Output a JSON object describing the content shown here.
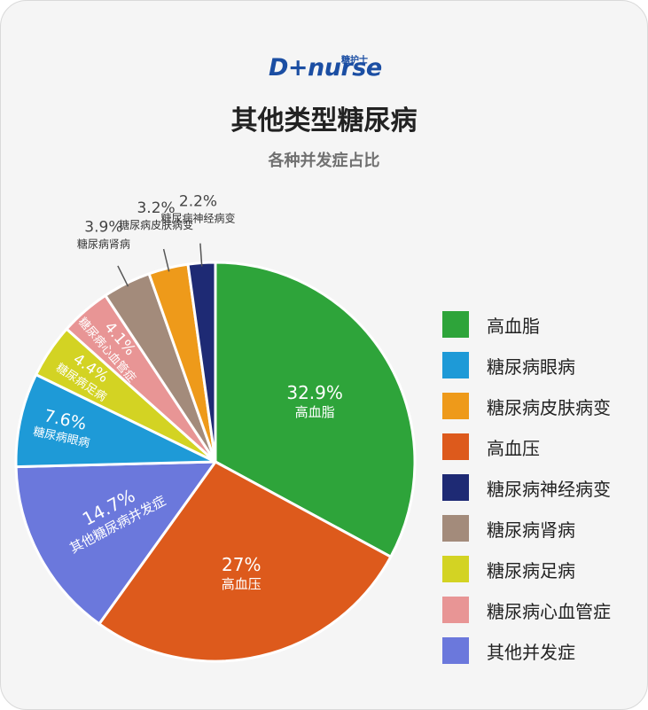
{
  "brand": {
    "logo_text": "D+nurse",
    "logo_chinese": "糖护士"
  },
  "chart_data": {
    "type": "pie",
    "title": "其他类型糖尿病",
    "subtitle": "各种并发症占比",
    "legend_position": "right",
    "slices": [
      {
        "label": "高血脂",
        "value": 32.9,
        "value_text": "32.9%",
        "color": "#2ea43a",
        "label_placement": "inside"
      },
      {
        "label": "高血压",
        "value": 27,
        "value_text": "27%",
        "color": "#dd5a1c",
        "label_placement": "inside"
      },
      {
        "label": "其他糖尿病并发症",
        "value": 14.7,
        "value_text": "14.7%",
        "color": "#6b78dc",
        "label_placement": "inside"
      },
      {
        "label": "糖尿病眼病",
        "value": 7.6,
        "value_text": "7.6%",
        "color": "#1e9ad7",
        "label_placement": "inside"
      },
      {
        "label": "糖尿病足病",
        "value": 4.4,
        "value_text": "4.4%",
        "color": "#d3d323",
        "label_placement": "inside"
      },
      {
        "label": "糖尿病心血管症",
        "value": 4.1,
        "value_text": "4.1%",
        "color": "#e89595",
        "label_placement": "inside"
      },
      {
        "label": "糖尿病肾病",
        "value": 3.9,
        "value_text": "3.9%",
        "color": "#a38b7b",
        "label_placement": "outside"
      },
      {
        "label": "糖尿病皮肤病变",
        "value": 3.2,
        "value_text": "3.2%",
        "color": "#ee9a1a",
        "label_placement": "outside"
      },
      {
        "label": "糖尿病神经病变",
        "value": 2.2,
        "value_text": "2.2%",
        "color": "#1e2a74",
        "label_placement": "outside"
      }
    ],
    "legend": [
      {
        "label": "高血脂",
        "color": "#2ea43a"
      },
      {
        "label": "糖尿病眼病",
        "color": "#1e9ad7"
      },
      {
        "label": "糖尿病皮肤病变",
        "color": "#ee9a1a"
      },
      {
        "label": "高血压",
        "color": "#dd5a1c"
      },
      {
        "label": "糖尿病神经病变",
        "color": "#1e2a74"
      },
      {
        "label": "糖尿病肾病",
        "color": "#a38b7b"
      },
      {
        "label": "糖尿病足病",
        "color": "#d3d323"
      },
      {
        "label": "糖尿病心血管症",
        "color": "#e89595"
      },
      {
        "label": "其他并发症",
        "color": "#6b78dc"
      }
    ]
  }
}
